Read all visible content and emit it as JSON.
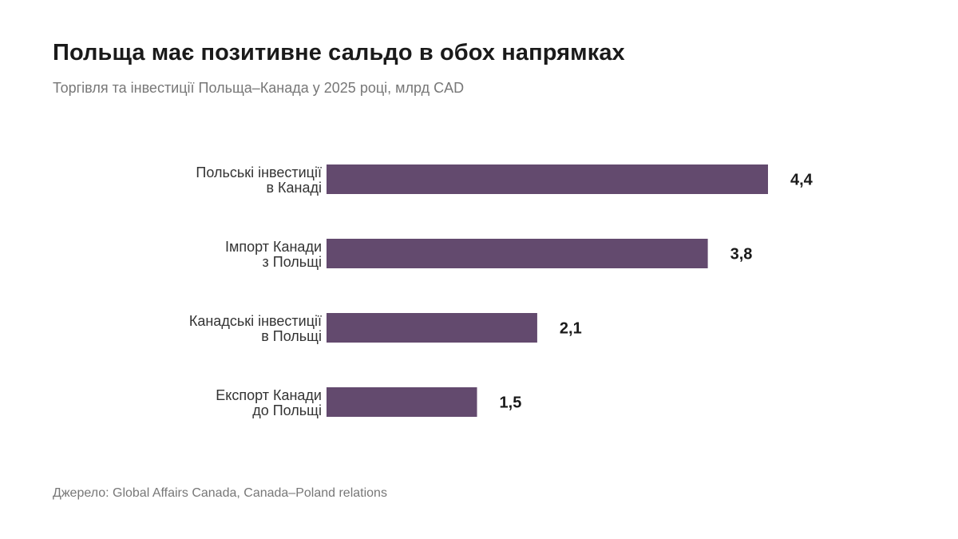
{
  "chart_data": {
    "type": "bar",
    "orientation": "horizontal",
    "title": "Польща має позитивне сальдо в обох напрямках",
    "subtitle": "Торгівля та інвестиції Польща–Канада у 2025 році, млрд CAD",
    "categories": [
      [
        "Польські інвестиції",
        "в Канаді"
      ],
      [
        "Імпорт Канади",
        "з Польщі"
      ],
      [
        "Канадські інвестиції",
        "в Польщі"
      ],
      [
        "Експорт Канади",
        "до Польщі"
      ]
    ],
    "values": [
      4.4,
      3.8,
      2.1,
      1.5
    ],
    "value_labels": [
      "4,4",
      "3,8",
      "2,1",
      "1,5"
    ],
    "xlim": [
      0,
      4.4
    ],
    "grid": false,
    "legend": "none",
    "bar_color": "#634a6e",
    "source": "Джерело: Global Affairs Canada, Canada–Poland relations"
  }
}
